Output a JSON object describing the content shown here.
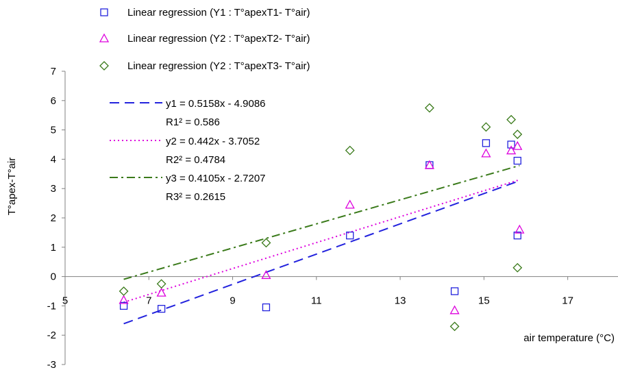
{
  "chart_data": {
    "type": "scatter",
    "xlabel": "air temperature (°C)",
    "ylabel": "T°apex-T°air",
    "xlim": [
      5,
      18.2
    ],
    "ylim": [
      -3,
      7
    ],
    "xticks": [
      5,
      7,
      9,
      11,
      13,
      15,
      17
    ],
    "yticks": [
      -3,
      -2,
      -1,
      0,
      1,
      2,
      3,
      4,
      5,
      6,
      7
    ],
    "legend_position": "top-center",
    "series": [
      {
        "name": "Linear regression (Y1 : T°apexT1- T°air)",
        "marker": "square",
        "color": "#2222dd",
        "points": [
          [
            6.4,
            -1.0
          ],
          [
            7.3,
            -1.1
          ],
          [
            9.8,
            -1.05
          ],
          [
            11.8,
            1.4
          ],
          [
            13.7,
            3.8
          ],
          [
            14.3,
            -0.5
          ],
          [
            15.05,
            4.55
          ],
          [
            15.65,
            4.5
          ],
          [
            15.8,
            3.95
          ],
          [
            15.8,
            1.4
          ]
        ]
      },
      {
        "name": "Linear regression (Y2 : T°apexT2- T°air)",
        "marker": "triangle",
        "color": "#dd00dd",
        "points": [
          [
            6.4,
            -0.8
          ],
          [
            7.3,
            -0.55
          ],
          [
            9.8,
            0.05
          ],
          [
            11.8,
            2.45
          ],
          [
            13.7,
            3.8
          ],
          [
            14.3,
            -1.15
          ],
          [
            15.05,
            4.2
          ],
          [
            15.65,
            4.3
          ],
          [
            15.8,
            4.45
          ],
          [
            15.85,
            1.6
          ]
        ]
      },
      {
        "name": "Linear regression (Y2 : T°apexT3- T°air)",
        "marker": "diamond",
        "color": "#3a7a1a",
        "points": [
          [
            6.4,
            -0.5
          ],
          [
            7.3,
            -0.25
          ],
          [
            9.8,
            1.15
          ],
          [
            11.8,
            4.3
          ],
          [
            13.7,
            5.75
          ],
          [
            14.3,
            -1.7
          ],
          [
            15.05,
            5.1
          ],
          [
            15.65,
            5.35
          ],
          [
            15.8,
            4.85
          ],
          [
            15.8,
            0.3
          ]
        ]
      }
    ],
    "trendlines": [
      {
        "equation": "y1 = 0.5158x - 4.9086",
        "r2_label": "R1² = 0.586",
        "slope": 0.5158,
        "intercept": -4.9086,
        "x_range": [
          6.4,
          15.85
        ],
        "style": "dashed",
        "color": "#2222dd"
      },
      {
        "equation": "y2 = 0.442x - 3.7052",
        "r2_label": "R2² = 0.4784",
        "slope": 0.442,
        "intercept": -3.7052,
        "x_range": [
          6.4,
          15.85
        ],
        "style": "dotted",
        "color": "#dd00dd"
      },
      {
        "equation": "y3 = 0.4105x - 2.7207",
        "r2_label": "R3² = 0.2615",
        "slope": 0.4105,
        "intercept": -2.7207,
        "x_range": [
          6.4,
          15.85
        ],
        "style": "dashdot",
        "color": "#3a7a1a"
      }
    ]
  }
}
